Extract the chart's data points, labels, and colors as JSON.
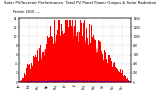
{
  "title_line1": "Solar PV/Inverter Performance  Total PV Panel Power Output & Solar Radiation",
  "title_line2": "Period: 2010 ----",
  "title_fontsize": 2.8,
  "subtitle_fontsize": 2.4,
  "bg_color": "#ffffff",
  "plot_bg_color": "#ffffff",
  "grid_color": "#aaaaaa",
  "fill_color": "#ff0000",
  "bar_color": "#ff0000",
  "blue_line_color": "#0000ff",
  "ylim_left": [
    0,
    14
  ],
  "ylim_right": [
    0,
    1400
  ],
  "yticks_left": [
    0,
    2,
    4,
    6,
    8,
    10,
    12,
    14
  ],
  "yticks_right": [
    0,
    200,
    400,
    600,
    800,
    1000,
    1200,
    1400
  ],
  "n_days": 365
}
